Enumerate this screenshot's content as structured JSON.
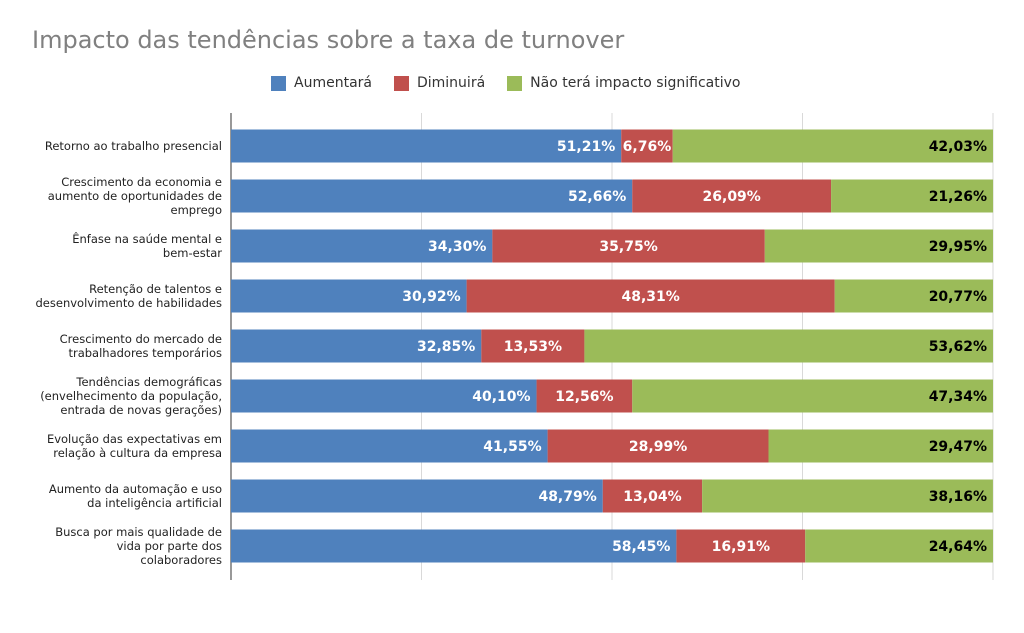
{
  "chart_data": {
    "type": "bar",
    "orientation": "horizontal",
    "stacked": true,
    "title": "Impacto das tendências sobre a taxa de turnover",
    "xlim": [
      0,
      100
    ],
    "grid": true,
    "legend_position": "top",
    "categories": [
      "Retorno ao trabalho presencial",
      "Crescimento da economia e aumento de oportunidades de emprego",
      "Ênfase na saúde mental e bem-estar",
      "Retenção de talentos e desenvolvimento de habilidades",
      "Crescimento do mercado de trabalhadores temporários",
      "Tendências demográficas (envelhecimento da população, entrada de novas gerações)",
      "Evolução das expectativas em relação à cultura da empresa",
      "Aumento da automação e uso da inteligência artificial",
      "Busca por mais qualidade de vida por parte dos colaboradores"
    ],
    "category_lines": [
      [
        "Retorno ao trabalho presencial"
      ],
      [
        "Crescimento da economia e",
        "aumento de oportunidades de",
        "emprego"
      ],
      [
        "Ênfase na saúde mental e",
        "bem-estar"
      ],
      [
        "Retenção de talentos e",
        "desenvolvimento de habilidades"
      ],
      [
        "Crescimento do mercado de",
        "trabalhadores temporários"
      ],
      [
        "Tendências demográficas",
        "(envelhecimento da população,",
        "entrada de novas gerações)"
      ],
      [
        "Evolução das expectativas em",
        "relação à cultura da empresa"
      ],
      [
        "Aumento da automação e uso",
        "da inteligência artificial"
      ],
      [
        "Busca por mais qualidade de",
        "vida por parte dos",
        "colaboradores"
      ]
    ],
    "series": [
      {
        "name": "Aumentará",
        "color": "#4f81bd",
        "values": [
          51.21,
          52.66,
          34.3,
          30.92,
          32.85,
          40.1,
          41.55,
          48.79,
          58.45
        ]
      },
      {
        "name": "Diminuirá",
        "color": "#c0504d",
        "values": [
          6.76,
          26.09,
          35.75,
          48.31,
          13.53,
          12.56,
          28.99,
          13.04,
          16.91
        ]
      },
      {
        "name": "Não terá impacto significativo",
        "color": "#9bbb59",
        "values": [
          42.03,
          21.26,
          29.95,
          20.77,
          53.62,
          47.34,
          29.47,
          38.16,
          24.64
        ]
      }
    ]
  }
}
